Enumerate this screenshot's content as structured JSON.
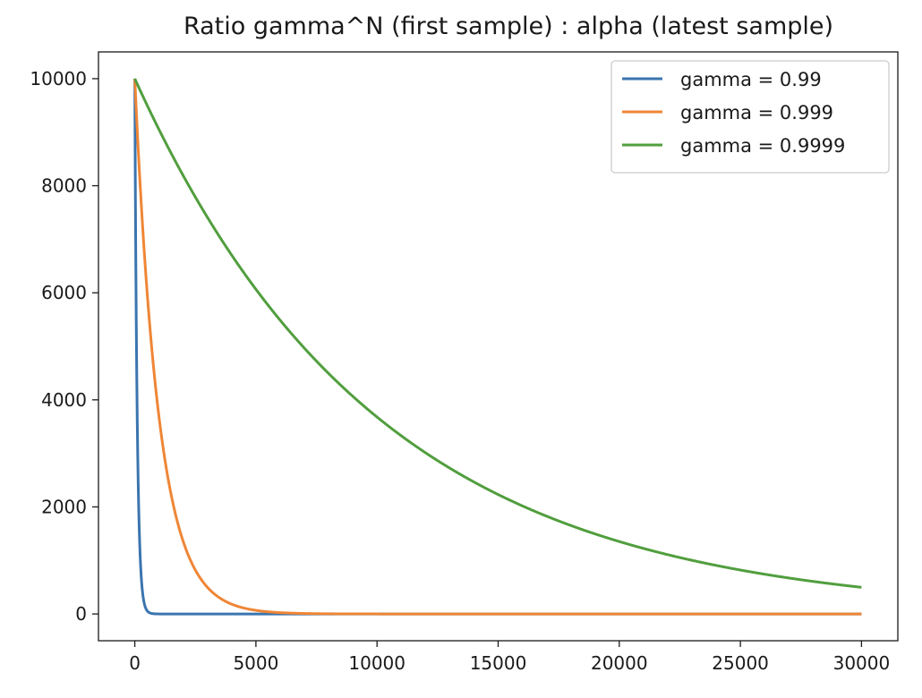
{
  "chart_data": {
    "type": "line",
    "title": "Ratio gamma^N (first sample) : alpha (latest sample)",
    "xlabel": "",
    "ylabel": "",
    "xlim": [
      -1500,
      31500
    ],
    "ylim": [
      -500,
      10500
    ],
    "x_ticks": [
      0,
      5000,
      10000,
      15000,
      20000,
      25000,
      30000
    ],
    "y_ticks": [
      0,
      2000,
      4000,
      6000,
      8000,
      10000
    ],
    "grid": false,
    "legend_position": "top-right",
    "x_range": [
      0,
      30000
    ],
    "series": [
      {
        "name": "gamma = 0.99",
        "gamma": 0.99,
        "color": "#3a75af"
      },
      {
        "name": "gamma = 0.999",
        "gamma": 0.999,
        "color": "#ef8636"
      },
      {
        "name": "gamma = 0.9999",
        "gamma": 0.9999,
        "color": "#519e3e"
      }
    ]
  }
}
